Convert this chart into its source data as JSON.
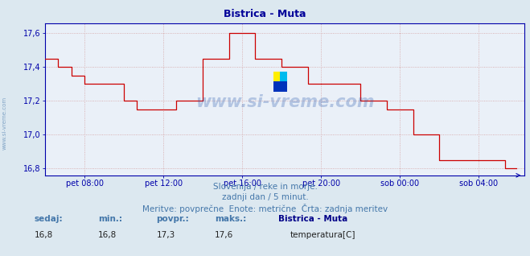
{
  "title": "Bistrica - Muta",
  "bg_color": "#dce8f0",
  "plot_bg_color": "#eaf0f8",
  "line_color": "#cc0000",
  "grid_color": "#c8a8a8",
  "axis_color": "#0000aa",
  "text_color": "#4477aa",
  "title_color": "#000099",
  "ylabel_values": [
    16.8,
    17.0,
    17.2,
    17.4,
    17.6
  ],
  "ylim": [
    16.76,
    17.66
  ],
  "subtitle1": "Slovenija / reke in morje.",
  "subtitle2": "zadnji dan / 5 minut.",
  "subtitle3": "Meritve: povprečne  Enote: metrične  Črta: zadnja meritev",
  "footer_sedaj_label": "sedaj:",
  "footer_min_label": "min.:",
  "footer_povpr_label": "povpr.:",
  "footer_maks_label": "maks.:",
  "footer_sedaj_val": "16,8",
  "footer_min_val": "16,8",
  "footer_povpr_val": "17,3",
  "footer_maks_val": "17,6",
  "footer_station": "Bistrica - Muta",
  "footer_param": "temperatura[C]",
  "watermark": "www.si-vreme.com",
  "x_tick_labels": [
    "pet 08:00",
    "pet 12:00",
    "pet 16:00",
    "pet 20:00",
    "sob 00:00",
    "sob 04:00"
  ],
  "num_points": 288,
  "data_y": [
    17.45,
    17.45,
    17.45,
    17.45,
    17.45,
    17.45,
    17.45,
    17.45,
    17.4,
    17.4,
    17.4,
    17.4,
    17.4,
    17.4,
    17.4,
    17.4,
    17.35,
    17.35,
    17.35,
    17.35,
    17.35,
    17.35,
    17.35,
    17.35,
    17.3,
    17.3,
    17.3,
    17.3,
    17.3,
    17.3,
    17.3,
    17.3,
    17.3,
    17.3,
    17.3,
    17.3,
    17.3,
    17.3,
    17.3,
    17.3,
    17.3,
    17.3,
    17.3,
    17.3,
    17.3,
    17.3,
    17.3,
    17.3,
    17.2,
    17.2,
    17.2,
    17.2,
    17.2,
    17.2,
    17.2,
    17.2,
    17.15,
    17.15,
    17.15,
    17.15,
    17.15,
    17.15,
    17.15,
    17.15,
    17.15,
    17.15,
    17.15,
    17.15,
    17.15,
    17.15,
    17.15,
    17.15,
    17.15,
    17.15,
    17.15,
    17.15,
    17.15,
    17.15,
    17.15,
    17.15,
    17.2,
    17.2,
    17.2,
    17.2,
    17.2,
    17.2,
    17.2,
    17.2,
    17.2,
    17.2,
    17.2,
    17.2,
    17.2,
    17.2,
    17.2,
    17.2,
    17.45,
    17.45,
    17.45,
    17.45,
    17.45,
    17.45,
    17.45,
    17.45,
    17.45,
    17.45,
    17.45,
    17.45,
    17.45,
    17.45,
    17.45,
    17.45,
    17.6,
    17.6,
    17.6,
    17.6,
    17.6,
    17.6,
    17.6,
    17.6,
    17.6,
    17.6,
    17.6,
    17.6,
    17.6,
    17.6,
    17.6,
    17.6,
    17.45,
    17.45,
    17.45,
    17.45,
    17.45,
    17.45,
    17.45,
    17.45,
    17.45,
    17.45,
    17.45,
    17.45,
    17.45,
    17.45,
    17.45,
    17.45,
    17.4,
    17.4,
    17.4,
    17.4,
    17.4,
    17.4,
    17.4,
    17.4,
    17.4,
    17.4,
    17.4,
    17.4,
    17.4,
    17.4,
    17.4,
    17.4,
    17.3,
    17.3,
    17.3,
    17.3,
    17.3,
    17.3,
    17.3,
    17.3,
    17.3,
    17.3,
    17.3,
    17.3,
    17.3,
    17.3,
    17.3,
    17.3,
    17.3,
    17.3,
    17.3,
    17.3,
    17.3,
    17.3,
    17.3,
    17.3,
    17.3,
    17.3,
    17.3,
    17.3,
    17.3,
    17.3,
    17.3,
    17.3,
    17.2,
    17.2,
    17.2,
    17.2,
    17.2,
    17.2,
    17.2,
    17.2,
    17.2,
    17.2,
    17.2,
    17.2,
    17.2,
    17.2,
    17.2,
    17.2,
    17.15,
    17.15,
    17.15,
    17.15,
    17.15,
    17.15,
    17.15,
    17.15,
    17.15,
    17.15,
    17.15,
    17.15,
    17.15,
    17.15,
    17.15,
    17.15,
    17.0,
    17.0,
    17.0,
    17.0,
    17.0,
    17.0,
    17.0,
    17.0,
    17.0,
    17.0,
    17.0,
    17.0,
    17.0,
    17.0,
    17.0,
    17.0,
    16.85,
    16.85,
    16.85,
    16.85,
    16.85,
    16.85,
    16.85,
    16.85,
    16.85,
    16.85,
    16.85,
    16.85,
    16.85,
    16.85,
    16.85,
    16.85,
    16.85,
    16.85,
    16.85,
    16.85,
    16.85,
    16.85,
    16.85,
    16.85,
    16.85,
    16.85,
    16.85,
    16.85,
    16.85,
    16.85,
    16.85,
    16.85,
    16.85,
    16.85,
    16.85,
    16.85,
    16.85,
    16.85,
    16.85,
    16.85,
    16.8,
    16.8,
    16.8,
    16.8,
    16.8,
    16.8,
    16.8,
    16.8
  ]
}
